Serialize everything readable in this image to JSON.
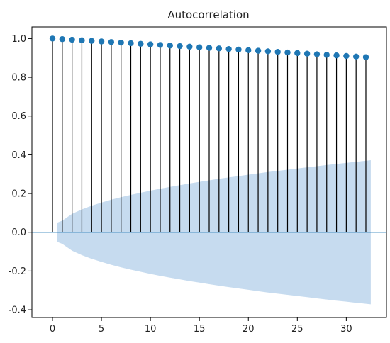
{
  "chart_data": {
    "type": "stem",
    "title": "Autocorrelation",
    "xlabel": "",
    "ylabel": "",
    "xlim": [
      -2.1,
      34.1
    ],
    "ylim": [
      -0.44,
      1.06
    ],
    "xticks": [
      0,
      5,
      10,
      15,
      20,
      25,
      30
    ],
    "xtick_labels": [
      "0",
      "5",
      "10",
      "15",
      "20",
      "25",
      "30"
    ],
    "yticks": [
      -0.4,
      -0.2,
      0.0,
      0.2,
      0.4,
      0.6,
      0.8,
      1.0
    ],
    "ytick_labels": [
      "-0.4",
      "-0.2",
      "0.0",
      "0.2",
      "0.4",
      "0.6",
      "0.8",
      "1.0"
    ],
    "lags": [
      0,
      1,
      2,
      3,
      4,
      5,
      6,
      7,
      8,
      9,
      10,
      11,
      12,
      13,
      14,
      15,
      16,
      17,
      18,
      19,
      20,
      21,
      22,
      23,
      24,
      25,
      26,
      27,
      28,
      29,
      30,
      31,
      32
    ],
    "values": [
      1.0,
      0.997,
      0.994,
      0.991,
      0.988,
      0.985,
      0.982,
      0.979,
      0.976,
      0.973,
      0.97,
      0.967,
      0.964,
      0.961,
      0.958,
      0.955,
      0.952,
      0.949,
      0.946,
      0.943,
      0.94,
      0.937,
      0.934,
      0.931,
      0.928,
      0.925,
      0.922,
      0.919,
      0.916,
      0.913,
      0.91,
      0.907,
      0.904
    ],
    "confidence_band": {
      "lags": [
        0.5,
        1,
        2,
        3,
        4,
        5,
        6,
        7,
        8,
        9,
        10,
        11,
        12,
        13,
        14,
        15,
        16,
        17,
        18,
        19,
        20,
        21,
        22,
        23,
        24,
        25,
        26,
        27,
        28,
        29,
        30,
        31,
        32,
        32.5
      ],
      "upper": [
        0.05,
        0.06,
        0.095,
        0.118,
        0.137,
        0.153,
        0.168,
        0.181,
        0.193,
        0.204,
        0.215,
        0.225,
        0.234,
        0.243,
        0.252,
        0.26,
        0.268,
        0.276,
        0.283,
        0.29,
        0.297,
        0.304,
        0.311,
        0.317,
        0.323,
        0.329,
        0.335,
        0.341,
        0.347,
        0.353,
        0.358,
        0.364,
        0.369,
        0.372
      ]
    },
    "colors": {
      "stem": "#000000",
      "marker": "#1f77b4",
      "zero_line": "#1f77b4",
      "band": "#c6dbef"
    }
  }
}
